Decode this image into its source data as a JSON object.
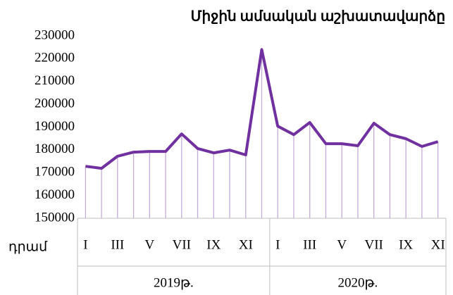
{
  "chart_data": {
    "type": "line",
    "title": "Միջին ամսական աշխատավարձը",
    "y_unit_label": "դրամ",
    "year_labels": [
      "2019թ.",
      "2020թ."
    ],
    "categories": [
      "I",
      null,
      "III",
      null,
      "V",
      null,
      "VII",
      null,
      "IX",
      null,
      "XI",
      null,
      "I",
      null,
      "III",
      null,
      "V",
      null,
      "VII",
      null,
      "IX",
      null,
      "XI"
    ],
    "series": [
      {
        "name": "Միջին ամսական աշխատավարձ",
        "color": "#7030a0",
        "values": [
          172800,
          171900,
          177200,
          179000,
          179300,
          179300,
          187000,
          180600,
          178700,
          179900,
          177800,
          224000,
          190400,
          186700,
          192000,
          182700,
          182700,
          181800,
          191700,
          186700,
          184900,
          181500,
          183600
        ]
      }
    ],
    "drop_line_color": "#c4acd9",
    "ylim": [
      150000,
      230000
    ],
    "yticks": [
      150000,
      160000,
      170000,
      180000,
      190000,
      200000,
      210000,
      220000,
      230000
    ]
  }
}
